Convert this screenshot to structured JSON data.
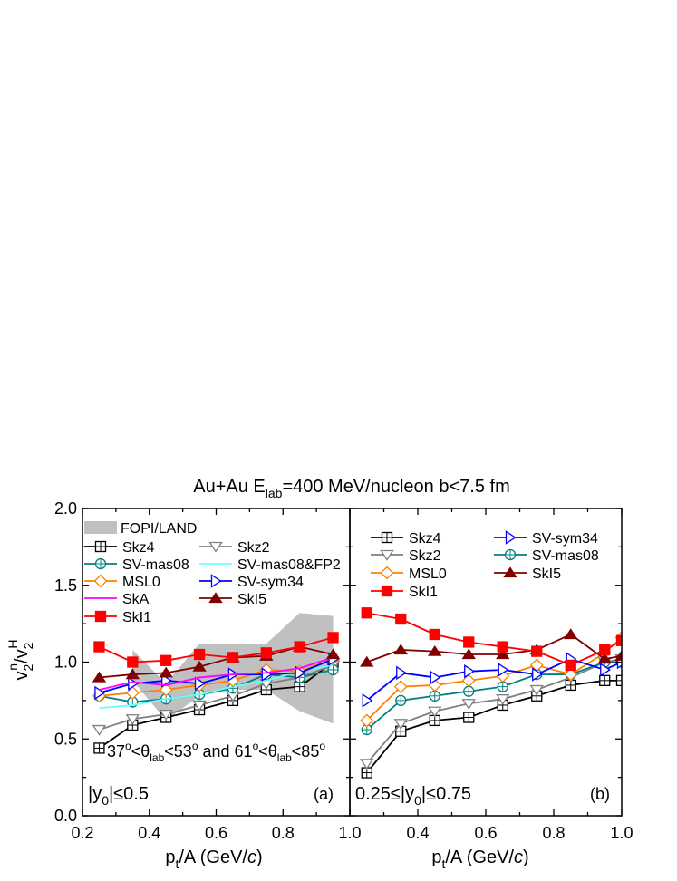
{
  "title_main": "Au+Au  E",
  "title_sub": "lab",
  "title_rest": "=400 MeV/nucleon  b<7.5 fm",
  "ylabel": {
    "base": "v",
    "sub1": "2",
    "sup1": "n",
    "sep": "/v",
    "sub2": "2",
    "sup2": "H"
  },
  "xlabel": {
    "base": "p",
    "sub": "t",
    "rest": "/A (GeV/",
    "italic": "c",
    "close": ")"
  },
  "panel_a": {
    "label": "(a)",
    "y_cut": {
      "pre": "|y",
      "sub": "0",
      "post": "|≤0.5"
    },
    "angle_note": {
      "p1": "37",
      "s1": "o",
      "p2": "<θ",
      "sub1": "lab",
      "p3": "<53",
      "s2": "o",
      "p4": " and 61",
      "s3": "o",
      "p5": "<θ",
      "sub2": "lab",
      "p6": "<85",
      "s4": "o"
    },
    "xticks": [
      "0.2",
      "0.4",
      "0.6",
      "0.8",
      "1.0"
    ],
    "band_label": "FOPI/LAND"
  },
  "panel_b": {
    "label": "(b)",
    "y_cut": {
      "pre": "0.25≤|y",
      "sub": "0",
      "post": "|≤0.75"
    },
    "xticks": [
      "0.4",
      "0.6",
      "0.8",
      "1.0"
    ]
  },
  "yticks": [
    "0.0",
    "0.5",
    "1.0",
    "1.5",
    "2.0"
  ],
  "colors": {
    "Skz4": "#000000",
    "Skz2": "#808080",
    "SV-mas08": "#008080",
    "SV-mas08&FP2": "#66ffff",
    "MSL0": "#ff8000",
    "SV-sym34": "#0000ff",
    "SkA": "#ff00ff",
    "SkI5": "#800000",
    "SkI1": "#ff0000",
    "band": "#c0c0c0"
  },
  "chart_data": [
    {
      "type": "line",
      "panel": "a",
      "title": "Au+Au  E_lab=400 MeV/nucleon  b<7.5 fm",
      "xlabel": "p_t/A (GeV/c)",
      "ylabel": "v_2^n/v_2^H",
      "xlim": [
        0.2,
        1.0
      ],
      "ylim": [
        0.0,
        2.0
      ],
      "x": [
        0.25,
        0.35,
        0.45,
        0.55,
        0.65,
        0.75,
        0.85,
        0.95
      ],
      "band": {
        "name": "FOPI/LAND",
        "x": [
          0.35,
          0.45,
          0.55,
          0.65,
          0.75,
          0.85,
          0.95
        ],
        "low": [
          0.88,
          0.62,
          0.78,
          0.82,
          0.82,
          0.68,
          0.6
        ],
        "high": [
          1.08,
          0.86,
          1.12,
          1.12,
          1.12,
          1.32,
          1.3
        ]
      },
      "series": [
        {
          "name": "Skz4",
          "marker": "square-open",
          "values": [
            0.44,
            0.59,
            0.64,
            0.69,
            0.75,
            0.82,
            0.84,
            1.0
          ]
        },
        {
          "name": "Skz2",
          "marker": "triangle-down-open",
          "values": [
            0.56,
            0.63,
            0.66,
            0.72,
            0.78,
            0.86,
            0.9,
            0.98
          ]
        },
        {
          "name": "SV-mas08",
          "marker": "circle-open",
          "values": [
            0.78,
            0.74,
            0.76,
            0.79,
            0.83,
            0.92,
            0.9,
            0.95
          ]
        },
        {
          "name": "SV-mas08&FP2",
          "marker": "none",
          "values": [
            0.7,
            0.72,
            0.76,
            0.79,
            0.84,
            0.88,
            0.94,
            0.98
          ]
        },
        {
          "name": "MSL0",
          "marker": "diamond-open",
          "values": [
            0.78,
            0.8,
            0.82,
            0.85,
            0.88,
            0.95,
            0.94,
            1.02
          ]
        },
        {
          "name": "SV-sym34",
          "marker": "triangle-right-open",
          "values": [
            0.8,
            0.86,
            0.88,
            0.86,
            0.92,
            0.92,
            0.93,
            1.02
          ]
        },
        {
          "name": "SkA",
          "marker": "none",
          "values": [
            0.82,
            0.87,
            0.85,
            0.9,
            0.92,
            0.93,
            0.96,
            1.03
          ]
        },
        {
          "name": "SkI5",
          "marker": "triangle-up-filled",
          "values": [
            0.9,
            0.92,
            0.93,
            0.97,
            1.03,
            1.04,
            1.1,
            1.05
          ]
        },
        {
          "name": "SkI1",
          "marker": "square-filled",
          "values": [
            1.1,
            1.0,
            1.01,
            1.05,
            1.03,
            1.06,
            1.1,
            1.16
          ]
        }
      ]
    },
    {
      "type": "line",
      "panel": "b",
      "xlabel": "p_t/A (GeV/c)",
      "xlim": [
        0.2,
        1.0
      ],
      "ylim": [
        0.0,
        2.0
      ],
      "x": [
        0.25,
        0.35,
        0.45,
        0.55,
        0.65,
        0.75,
        0.85,
        0.95,
        1.0
      ],
      "series": [
        {
          "name": "Skz4",
          "marker": "square-open",
          "values": [
            0.28,
            0.55,
            0.62,
            0.64,
            0.72,
            0.78,
            0.85,
            0.88,
            0.88
          ]
        },
        {
          "name": "Skz2",
          "marker": "triangle-down-open",
          "values": [
            0.34,
            0.6,
            0.68,
            0.73,
            0.76,
            0.82,
            0.9,
            1.0,
            1.02
          ]
        },
        {
          "name": "SV-mas08",
          "marker": "circle-open",
          "values": [
            0.56,
            0.75,
            0.78,
            0.81,
            0.84,
            0.92,
            0.92,
            1.0,
            1.0
          ]
        },
        {
          "name": "MSL0",
          "marker": "diamond-open",
          "values": [
            0.62,
            0.84,
            0.85,
            0.88,
            0.91,
            0.98,
            0.92,
            1.06,
            1.16
          ]
        },
        {
          "name": "SV-sym34",
          "marker": "triangle-right-open",
          "values": [
            0.75,
            0.93,
            0.9,
            0.94,
            0.95,
            0.92,
            1.02,
            0.95,
            1.0
          ]
        },
        {
          "name": "SkI5",
          "marker": "triangle-up-filled",
          "values": [
            1.0,
            1.08,
            1.07,
            1.05,
            1.05,
            1.08,
            1.18,
            1.02,
            1.04
          ]
        },
        {
          "name": "SkI1",
          "marker": "square-filled",
          "values": [
            1.32,
            1.28,
            1.18,
            1.13,
            1.1,
            1.07,
            0.98,
            1.08,
            1.14
          ]
        }
      ]
    }
  ]
}
